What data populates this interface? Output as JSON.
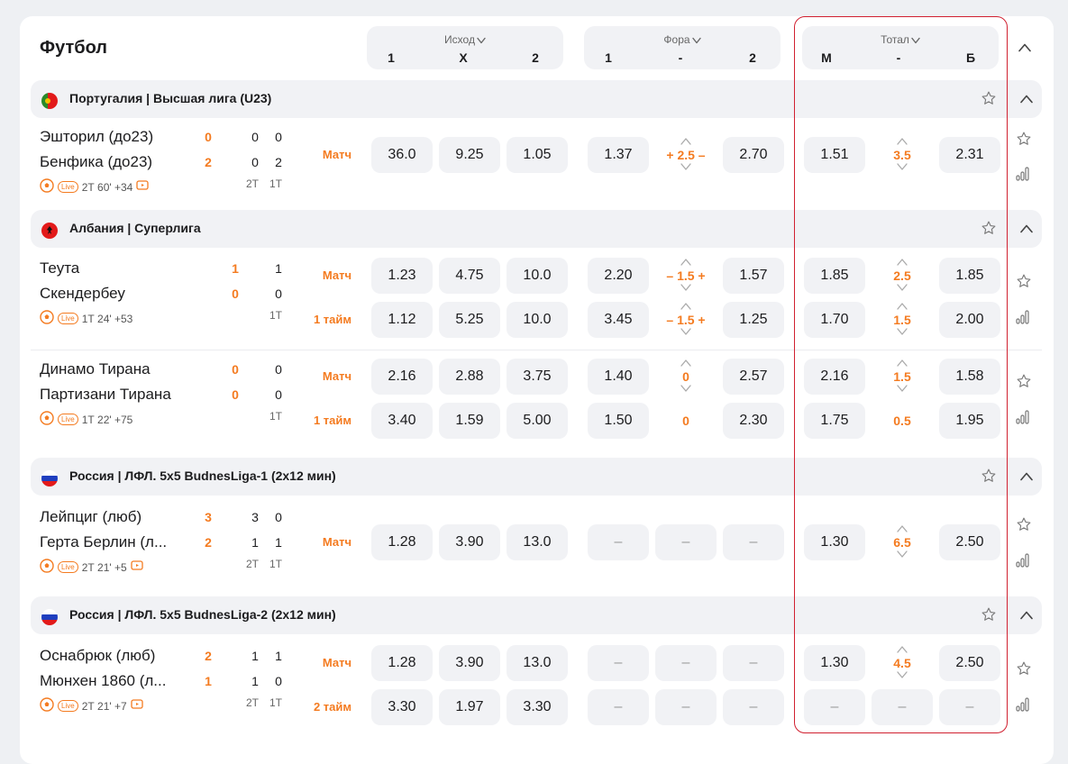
{
  "sport": "Футбол",
  "headers": {
    "ishod": {
      "title": "Исход",
      "cols": [
        "1",
        "X",
        "2"
      ]
    },
    "fora": {
      "title": "Фора",
      "cols": [
        "1",
        "-",
        "2"
      ]
    },
    "total": {
      "title": "Тотал",
      "cols": [
        "М",
        "-",
        "Б"
      ]
    }
  },
  "leagues": [
    {
      "name": "Португалия | Высшая лига (U23)",
      "flag": "portugal"
    },
    {
      "name": "Албания | Суперлига",
      "flag": "albania"
    },
    {
      "name": "Россия | ЛФЛ. 5х5 BudnesLiga-1 (2х12 мин)",
      "flag": "russia"
    },
    {
      "name": "Россия | ЛФЛ. 5х5 BudnesLiga-2 (2х12 мин)",
      "flag": "russia"
    }
  ],
  "matches": [
    {
      "team1": "Эшторил (до23)",
      "team2": "Бенфика (до23)",
      "score1": "0",
      "score2": "2",
      "p1": [
        "0",
        "0"
      ],
      "p2": [
        "0",
        "2"
      ],
      "periods": [
        "2Т",
        "1Т"
      ],
      "info": "2Т 60' +34",
      "rows": [
        {
          "label": "Матч",
          "o": [
            "36.0",
            "9.25",
            "1.05",
            "1.37",
            "+ 2.5 –",
            "2.70",
            "1.51",
            "3.5",
            "2.31"
          ]
        }
      ]
    },
    {
      "team1": "Теута",
      "team2": "Скендербеу",
      "score1": "1",
      "score2": "0",
      "p1": [
        "",
        "1"
      ],
      "p2": [
        "",
        "0"
      ],
      "periods": [
        "",
        "1Т"
      ],
      "info": "1Т 24' +53",
      "rows": [
        {
          "label": "Матч",
          "o": [
            "1.23",
            "4.75",
            "10.0",
            "2.20",
            "– 1.5 +",
            "1.57",
            "1.85",
            "2.5",
            "1.85"
          ]
        },
        {
          "label": "1 тайм",
          "o": [
            "1.12",
            "5.25",
            "10.0",
            "3.45",
            "– 1.5 +",
            "1.25",
            "1.70",
            "1.5",
            "2.00"
          ]
        }
      ]
    },
    {
      "team1": "Динамо Тирана",
      "team2": "Партизани Тирана",
      "score1": "0",
      "score2": "0",
      "p1": [
        "",
        "0"
      ],
      "p2": [
        "",
        "0"
      ],
      "periods": [
        "",
        "1Т"
      ],
      "info": "1Т 22' +75",
      "rows": [
        {
          "label": "Матч",
          "o": [
            "2.16",
            "2.88",
            "3.75",
            "1.40",
            "0",
            "2.57",
            "2.16",
            "1.5",
            "1.58"
          ]
        },
        {
          "label": "1 тайм",
          "o": [
            "3.40",
            "1.59",
            "5.00",
            "1.50",
            "0",
            "2.30",
            "1.75",
            "0.5",
            "1.95"
          ]
        }
      ]
    },
    {
      "team1": "Лейпциг (люб)",
      "team2": "Герта Берлин (л...",
      "score1": "3",
      "score2": "2",
      "p1": [
        "3",
        "0"
      ],
      "p2": [
        "1",
        "1"
      ],
      "periods": [
        "2Т",
        "1Т"
      ],
      "info": "2Т 21' +5",
      "rows": [
        {
          "label": "Матч",
          "o": [
            "1.28",
            "3.90",
            "13.0",
            "–",
            "–",
            "–",
            "1.30",
            "6.5",
            "2.50"
          ]
        }
      ]
    },
    {
      "team1": "Оснабрюк (люб)",
      "team2": "Мюнхен 1860 (л...",
      "score1": "2",
      "score2": "1",
      "p1": [
        "1",
        "1"
      ],
      "p2": [
        "1",
        "0"
      ],
      "periods": [
        "2Т",
        "1Т"
      ],
      "info": "2Т 21' +7",
      "rows": [
        {
          "label": "Матч",
          "o": [
            "1.28",
            "3.90",
            "13.0",
            "–",
            "–",
            "–",
            "1.30",
            "4.5",
            "2.50"
          ]
        },
        {
          "label": "2 тайм",
          "o": [
            "3.30",
            "1.97",
            "3.30",
            "–",
            "–",
            "–",
            "–",
            "–",
            "–"
          ]
        }
      ]
    }
  ],
  "colors": {
    "accent": "#f47b20",
    "highlight": "#d12030",
    "cell": "#f1f2f5"
  }
}
